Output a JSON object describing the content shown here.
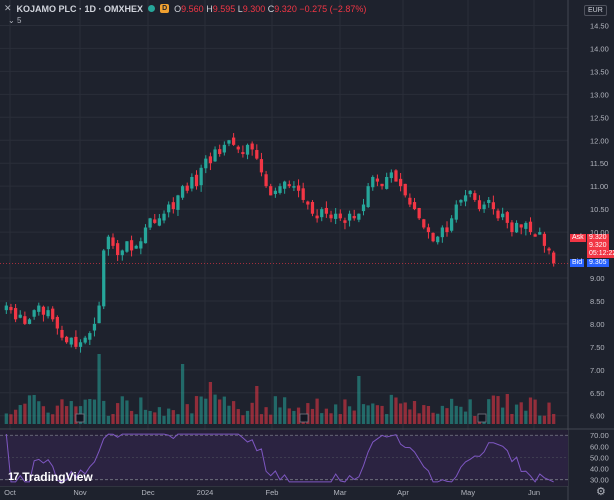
{
  "header": {
    "close_icon": "close-icon",
    "title": "KOJAMO PLC · 1D · OMXHEX",
    "d_badge": "D",
    "ohlc": {
      "o_label": "O",
      "o_value": "9.560",
      "h_label": "H",
      "h_value": "9.595",
      "l_label": "L",
      "l_value": "9.300",
      "c_label": "C",
      "c_value": "9.320",
      "change": "−0.275 (−2.87%)"
    },
    "indicator_toggle": "5"
  },
  "currency": "EUR",
  "price_labels": {
    "ask_label": "Ask",
    "ask_value": "9.320",
    "last_value": "9.320",
    "countdown": "05:12:22",
    "bid_label": "Bid",
    "bid_value": "9.305"
  },
  "logo_text": "TradingView",
  "colors": {
    "background": "#1e222d",
    "up": "#26a69a",
    "down": "#f23645",
    "rsi": "#7e57c2"
  },
  "chart_data": {
    "type": "candlestick",
    "symbol": "KOJAMO PLC",
    "price_axis": [
      "14.50",
      "14.00",
      "13.50",
      "13.00",
      "12.50",
      "12.00",
      "11.50",
      "11.00",
      "10.50",
      "10.00",
      "9.50",
      "9.00",
      "8.50",
      "8.00",
      "7.50",
      "7.00",
      "6.50",
      "6.00"
    ],
    "price_range": [
      5.82,
      14.75
    ],
    "time_axis": [
      "Oct",
      "Nov",
      "Dec",
      "2024",
      "Feb",
      "Mar",
      "Apr",
      "May",
      "Jun"
    ],
    "closes": [
      8.4,
      8.3,
      8.1,
      8.2,
      8.0,
      8.1,
      8.3,
      8.4,
      8.2,
      8.3,
      8.1,
      7.9,
      7.7,
      7.6,
      7.7,
      7.5,
      7.6,
      7.7,
      7.8,
      8.0,
      8.4,
      9.6,
      9.9,
      9.7,
      9.5,
      9.6,
      9.8,
      9.6,
      9.7,
      9.8,
      10.1,
      10.3,
      10.2,
      10.3,
      10.4,
      10.6,
      10.5,
      10.8,
      11.0,
      10.9,
      11.2,
      11.0,
      11.4,
      11.6,
      11.5,
      11.8,
      11.7,
      11.9,
      12.0,
      11.9,
      11.8,
      11.7,
      11.9,
      11.8,
      11.6,
      11.3,
      11.0,
      10.8,
      10.9,
      11.0,
      11.1,
      11.0,
      11.0,
      10.9,
      10.7,
      10.6,
      10.4,
      10.3,
      10.5,
      10.4,
      10.3,
      10.4,
      10.3,
      10.2,
      10.4,
      10.3,
      10.4,
      10.6,
      11.0,
      11.2,
      11.1,
      11.0,
      11.2,
      11.3,
      11.1,
      11.0,
      10.8,
      10.6,
      10.5,
      10.3,
      10.1,
      10.0,
      9.8,
      9.9,
      10.1,
      10.0,
      10.3,
      10.6,
      10.7,
      10.8,
      10.9,
      10.7,
      10.5,
      10.6,
      10.7,
      10.5,
      10.3,
      10.4,
      10.2,
      10.0,
      10.2,
      10.1,
      10.2,
      10.0,
      9.9,
      10.0,
      9.7,
      9.6,
      9.32
    ],
    "rsi_axis": [
      "70.00",
      "60.00",
      "50.00",
      "40.00",
      "30.00"
    ],
    "rsi_range": [
      27,
      72
    ]
  }
}
